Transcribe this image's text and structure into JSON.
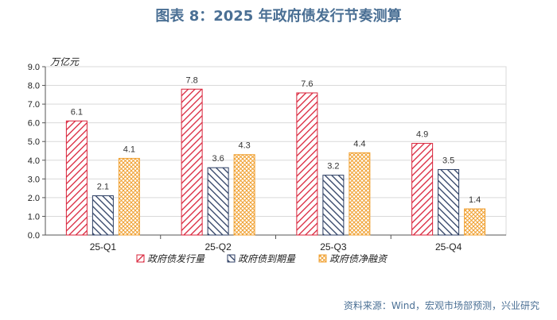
{
  "title": "图表 8：2025 年政府债发行节奏测算",
  "source": "资料来源：Wind，宏观市场部预测，兴业研究",
  "colors": {
    "issuance": "#d9233a",
    "maturity": "#2c3e63",
    "net": "#f0a030"
  },
  "chart_data": {
    "type": "bar",
    "unit": "万亿元",
    "categories": [
      "25-Q1",
      "25-Q2",
      "25-Q3",
      "25-Q4"
    ],
    "series": [
      {
        "name": "政府债发行量",
        "values": [
          6.1,
          7.8,
          7.6,
          4.9
        ]
      },
      {
        "name": "政府债到期量",
        "values": [
          2.1,
          3.6,
          3.2,
          3.5
        ]
      },
      {
        "name": "政府债净融资",
        "values": [
          4.1,
          4.3,
          4.4,
          1.4
        ]
      }
    ],
    "ylim": [
      0,
      9
    ],
    "yticks": [
      "0.0",
      "1.0",
      "2.0",
      "3.0",
      "4.0",
      "5.0",
      "6.0",
      "7.0",
      "8.0",
      "9.0"
    ],
    "grid": true,
    "legend_position": "bottom"
  }
}
